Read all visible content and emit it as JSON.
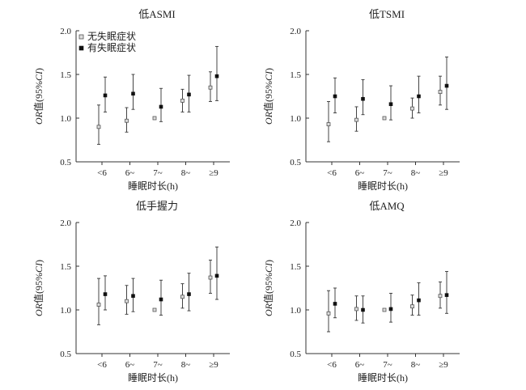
{
  "figure": {
    "legend": {
      "no_insomnia": "无失眠症状",
      "insomnia": "有失眠症状"
    }
  },
  "chart_data": [
    {
      "type": "scatter",
      "title": "低ASMI",
      "xlabel": "睡眠时长(h)",
      "ylabel_italic": "OR",
      "ylabel_rest": "值(95%",
      "ylabel_ci": "CI",
      "ylabel_close": ")",
      "categories": [
        "<6",
        "6~",
        "7~",
        "8~",
        "≥9"
      ],
      "ylim": [
        0.5,
        2.0
      ],
      "yticks": [
        "0.5",
        "1.0",
        "1.5",
        "2.0"
      ],
      "series": [
        {
          "name": "无失眠症状",
          "values": [
            0.9,
            0.97,
            1.0,
            1.2,
            1.35
          ],
          "lower": [
            0.7,
            0.84,
            1.0,
            1.07,
            1.19
          ],
          "upper": [
            1.15,
            1.12,
            1.0,
            1.33,
            1.53
          ]
        },
        {
          "name": "有失眠症状",
          "values": [
            1.26,
            1.28,
            1.13,
            1.27,
            1.48
          ],
          "lower": [
            1.07,
            1.1,
            0.96,
            1.07,
            1.2
          ],
          "upper": [
            1.47,
            1.5,
            1.34,
            1.49,
            1.82
          ]
        }
      ],
      "legend": true
    },
    {
      "type": "scatter",
      "title": "低TSMI",
      "xlabel": "睡眠时长(h)",
      "ylabel_italic": "OR",
      "ylabel_rest": "值(95%",
      "ylabel_ci": "CI",
      "ylabel_close": ")",
      "categories": [
        "<6",
        "6~",
        "7~",
        "8~",
        "≥9"
      ],
      "ylim": [
        0.5,
        2.0
      ],
      "yticks": [
        "0.5",
        "1.0",
        "1.5",
        "2.0"
      ],
      "series": [
        {
          "name": "无失眠症状",
          "values": [
            0.93,
            0.98,
            1.0,
            1.11,
            1.3
          ],
          "lower": [
            0.73,
            0.85,
            1.0,
            1.0,
            1.15
          ],
          "upper": [
            1.19,
            1.13,
            1.0,
            1.23,
            1.48
          ]
        },
        {
          "name": "有失眠症状",
          "values": [
            1.25,
            1.22,
            1.16,
            1.25,
            1.37
          ],
          "lower": [
            1.06,
            1.04,
            0.98,
            1.06,
            1.1
          ],
          "upper": [
            1.46,
            1.44,
            1.37,
            1.48,
            1.7
          ]
        }
      ],
      "legend": false
    },
    {
      "type": "scatter",
      "title": "低手握力",
      "xlabel": "睡眠时长(h)",
      "ylabel_italic": "OR",
      "ylabel_rest": "值(95%",
      "ylabel_ci": "CI",
      "ylabel_close": ")",
      "categories": [
        "<6",
        "6~",
        "7~",
        "8~",
        "≥9"
      ],
      "ylim": [
        0.5,
        2.0
      ],
      "yticks": [
        "0.5",
        "1.0",
        "1.5",
        "2.0"
      ],
      "series": [
        {
          "name": "无失眠症状",
          "values": [
            1.06,
            1.1,
            1.0,
            1.15,
            1.37
          ],
          "lower": [
            0.83,
            0.95,
            1.0,
            1.02,
            1.19
          ],
          "upper": [
            1.36,
            1.28,
            1.0,
            1.3,
            1.57
          ]
        },
        {
          "name": "有失眠症状",
          "values": [
            1.18,
            1.16,
            1.12,
            1.18,
            1.39
          ],
          "lower": [
            1.0,
            0.98,
            0.94,
            0.99,
            1.12
          ],
          "upper": [
            1.39,
            1.36,
            1.34,
            1.42,
            1.72
          ]
        }
      ],
      "legend": false
    },
    {
      "type": "scatter",
      "title": "低AMQ",
      "xlabel": "睡眠时长(h)",
      "ylabel_italic": "OR",
      "ylabel_rest": "值(95%",
      "ylabel_ci": "CI",
      "ylabel_close": ")",
      "categories": [
        "<6",
        "6~",
        "7~",
        "8~",
        "≥9"
      ],
      "ylim": [
        0.5,
        2.0
      ],
      "yticks": [
        "0.5",
        "1.0",
        "1.5",
        "2.0"
      ],
      "series": [
        {
          "name": "无失眠症状",
          "values": [
            0.96,
            1.01,
            1.0,
            1.04,
            1.16
          ],
          "lower": [
            0.75,
            0.88,
            1.0,
            0.94,
            1.02
          ],
          "upper": [
            1.22,
            1.16,
            1.0,
            1.17,
            1.32
          ]
        },
        {
          "name": "有失眠症状",
          "values": [
            1.07,
            1.0,
            1.01,
            1.11,
            1.17
          ],
          "lower": [
            0.91,
            0.85,
            0.86,
            0.94,
            0.96
          ],
          "upper": [
            1.25,
            1.16,
            1.19,
            1.31,
            1.44
          ]
        }
      ],
      "legend": false
    }
  ]
}
